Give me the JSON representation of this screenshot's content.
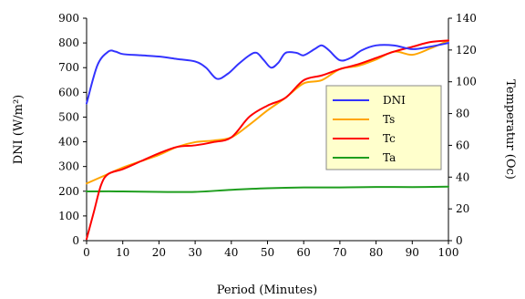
{
  "chart_data": {
    "type": "line",
    "xlabel": "Period  (Minutes)",
    "ylabel_left": "DNI (W/m²)",
    "ylabel_right": "Temperatur (Oc)",
    "xlim": [
      0,
      100
    ],
    "ylim_left": [
      0,
      900
    ],
    "ylim_right": [
      0,
      140
    ],
    "x_ticks": [
      "0",
      "10",
      "20",
      "30",
      "40",
      "50",
      "60",
      "70",
      "80",
      "90",
      "100"
    ],
    "y_left_ticks": [
      "0",
      "100",
      "200",
      "300",
      "400",
      "500",
      "600",
      "700",
      "800",
      "900"
    ],
    "y_right_ticks": [
      "0",
      "20",
      "40",
      "60",
      "80",
      "100",
      "120",
      "140"
    ],
    "grid": false,
    "legend_position": "center-right",
    "series": [
      {
        "name": "DNI",
        "axis": "left",
        "color": "#3333ff",
        "points": [
          [
            0,
            555
          ],
          [
            3,
            710
          ],
          [
            6,
            765
          ],
          [
            8,
            765
          ],
          [
            10,
            755
          ],
          [
            15,
            750
          ],
          [
            20,
            745
          ],
          [
            25,
            735
          ],
          [
            30,
            725
          ],
          [
            33,
            700
          ],
          [
            36,
            655
          ],
          [
            39,
            675
          ],
          [
            42,
            715
          ],
          [
            45,
            750
          ],
          [
            47,
            760
          ],
          [
            49,
            730
          ],
          [
            51,
            700
          ],
          [
            53,
            720
          ],
          [
            55,
            760
          ],
          [
            58,
            760
          ],
          [
            60,
            750
          ],
          [
            63,
            775
          ],
          [
            65,
            790
          ],
          [
            67,
            770
          ],
          [
            70,
            730
          ],
          [
            73,
            740
          ],
          [
            76,
            770
          ],
          [
            80,
            790
          ],
          [
            85,
            790
          ],
          [
            90,
            775
          ],
          [
            95,
            785
          ],
          [
            100,
            800
          ]
        ]
      },
      {
        "name": "Ts",
        "axis": "right",
        "color": "#ffa500",
        "points": [
          [
            0,
            36
          ],
          [
            5,
            41
          ],
          [
            10,
            46
          ],
          [
            15,
            50
          ],
          [
            20,
            54
          ],
          [
            25,
            59
          ],
          [
            30,
            62
          ],
          [
            35,
            63
          ],
          [
            40,
            65
          ],
          [
            45,
            73
          ],
          [
            50,
            82
          ],
          [
            55,
            90
          ],
          [
            60,
            99
          ],
          [
            65,
            101
          ],
          [
            70,
            108
          ],
          [
            75,
            110
          ],
          [
            80,
            114
          ],
          [
            85,
            119
          ],
          [
            90,
            117
          ],
          [
            95,
            121
          ],
          [
            100,
            126
          ]
        ]
      },
      {
        "name": "Tc",
        "axis": "right",
        "color": "#ff0000",
        "points": [
          [
            0,
            1
          ],
          [
            2,
            18
          ],
          [
            4,
            35
          ],
          [
            6,
            42
          ],
          [
            10,
            45
          ],
          [
            15,
            50
          ],
          [
            20,
            55
          ],
          [
            25,
            59
          ],
          [
            30,
            60
          ],
          [
            35,
            62
          ],
          [
            40,
            65
          ],
          [
            45,
            78
          ],
          [
            50,
            85
          ],
          [
            55,
            90
          ],
          [
            60,
            101
          ],
          [
            65,
            104
          ],
          [
            70,
            108
          ],
          [
            75,
            111
          ],
          [
            80,
            115
          ],
          [
            85,
            119
          ],
          [
            90,
            122
          ],
          [
            95,
            125
          ],
          [
            100,
            126
          ]
        ]
      },
      {
        "name": "Ta",
        "axis": "right",
        "color": "#1e9e1e",
        "points": [
          [
            0,
            31
          ],
          [
            10,
            31
          ],
          [
            20,
            30.7
          ],
          [
            30,
            30.7
          ],
          [
            40,
            32
          ],
          [
            50,
            33
          ],
          [
            60,
            33.5
          ],
          [
            70,
            33.5
          ],
          [
            80,
            33.8
          ],
          [
            90,
            33.7
          ],
          [
            100,
            34
          ]
        ]
      }
    ]
  }
}
